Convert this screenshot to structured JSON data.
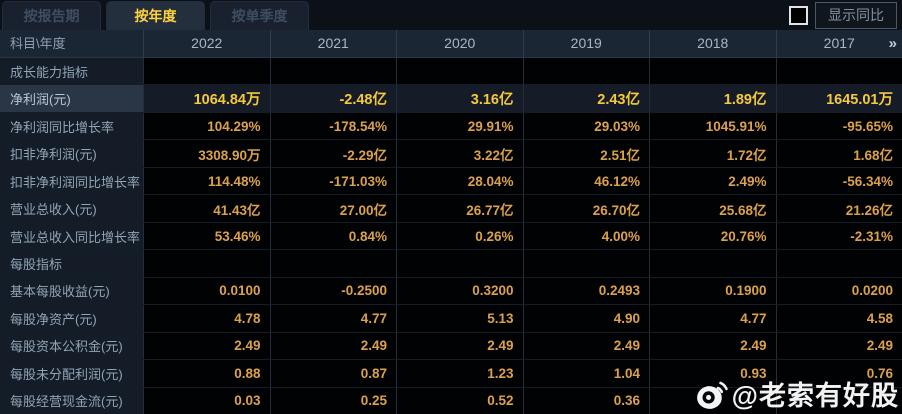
{
  "tabs": [
    {
      "label": "按报告期",
      "active": false
    },
    {
      "label": "按年度",
      "active": true
    },
    {
      "label": "按单季度",
      "active": false
    }
  ],
  "controls": {
    "show_yoy_label": "显示同比",
    "checkbox_checked": false
  },
  "table": {
    "corner_label": "科目\\年度",
    "years": [
      "2022",
      "2021",
      "2020",
      "2019",
      "2018",
      "2017"
    ],
    "more_icon": "»",
    "rows": [
      {
        "type": "section",
        "label": "成长能力指标"
      },
      {
        "type": "data",
        "highlight": true,
        "label": "净利润(元)",
        "values": [
          "1064.84万",
          "-2.48亿",
          "3.16亿",
          "2.43亿",
          "1.89亿",
          "1645.01万"
        ]
      },
      {
        "type": "data",
        "highlight": false,
        "label": "净利润同比增长率",
        "values": [
          "104.29%",
          "-178.54%",
          "29.91%",
          "29.03%",
          "1045.91%",
          "-95.65%"
        ]
      },
      {
        "type": "data",
        "highlight": false,
        "label": "扣非净利润(元)",
        "values": [
          "3308.90万",
          "-2.29亿",
          "3.22亿",
          "2.51亿",
          "1.72亿",
          "1.68亿"
        ]
      },
      {
        "type": "data",
        "highlight": false,
        "label": "扣非净利润同比增长率",
        "values": [
          "114.48%",
          "-171.03%",
          "28.04%",
          "46.12%",
          "2.49%",
          "-56.34%"
        ]
      },
      {
        "type": "data",
        "highlight": false,
        "label": "营业总收入(元)",
        "values": [
          "41.43亿",
          "27.00亿",
          "26.77亿",
          "26.70亿",
          "25.68亿",
          "21.26亿"
        ]
      },
      {
        "type": "data",
        "highlight": false,
        "label": "营业总收入同比增长率",
        "values": [
          "53.46%",
          "0.84%",
          "0.26%",
          "4.00%",
          "20.76%",
          "-2.31%"
        ]
      },
      {
        "type": "section",
        "label": "每股指标"
      },
      {
        "type": "data",
        "highlight": false,
        "label": "基本每股收益(元)",
        "values": [
          "0.0100",
          "-0.2500",
          "0.3200",
          "0.2493",
          "0.1900",
          "0.0200"
        ]
      },
      {
        "type": "data",
        "highlight": false,
        "label": "每股净资产(元)",
        "values": [
          "4.78",
          "4.77",
          "5.13",
          "4.90",
          "4.77",
          "4.58"
        ]
      },
      {
        "type": "data",
        "highlight": false,
        "label": "每股资本公积金(元)",
        "values": [
          "2.49",
          "2.49",
          "2.49",
          "2.49",
          "2.49",
          "2.49"
        ]
      },
      {
        "type": "data",
        "highlight": false,
        "label": "每股未分配利润(元)",
        "values": [
          "0.88",
          "0.87",
          "1.23",
          "1.04",
          "0.93",
          "0.76"
        ]
      },
      {
        "type": "data",
        "highlight": false,
        "label": "每股经营现金流(元)",
        "values": [
          "0.03",
          "0.25",
          "0.52",
          "0.36",
          "",
          ""
        ]
      }
    ]
  },
  "watermark": {
    "handle": "@老索有好股",
    "icon": "weibo-icon"
  },
  "colors": {
    "accent_value": "#dca14c",
    "highlight_value": "#f6c93c",
    "active_tab_text": "#ffd23e",
    "header_bg": "#1b2634",
    "label_bg": "#131c27",
    "highlight_row_bg": "#151c27"
  }
}
